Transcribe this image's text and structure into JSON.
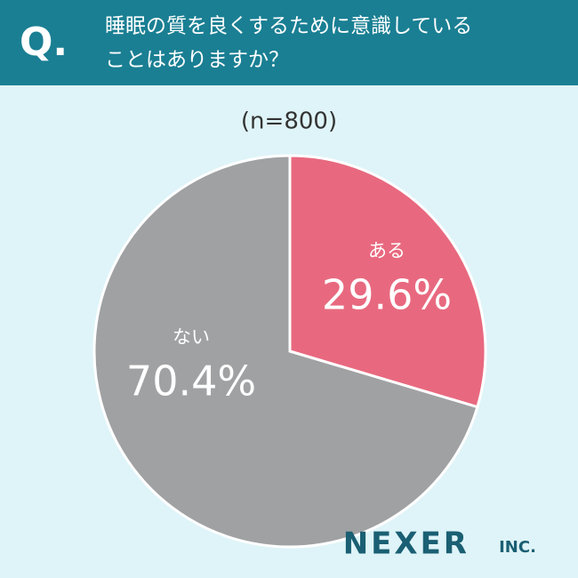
{
  "chart_data": {
    "type": "pie",
    "question_marker": "Q.",
    "title": [
      "睡眠の質を良くするために意識している",
      "ことはありますか？"
    ],
    "subtitle": "(n=800)",
    "categories": [
      "ある",
      "ない"
    ],
    "values": [
      29.6,
      70.4
    ],
    "value_labels": [
      "29.6%",
      "70.4%"
    ],
    "colors": [
      "#e8697f",
      "#a0a1a3"
    ],
    "brand": "NEXER",
    "brand_suffix": "INC."
  }
}
